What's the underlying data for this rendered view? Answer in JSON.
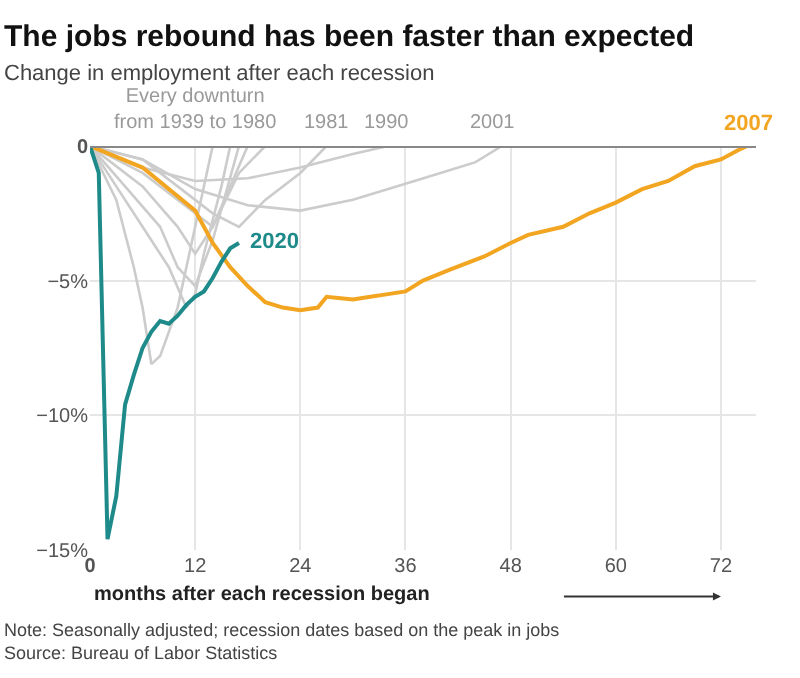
{
  "chart_data": {
    "type": "line",
    "title": "The jobs rebound has been faster than expected",
    "subtitle": "Change in employment after each recession",
    "xlabel": "months after each recession began",
    "xlim": [
      0,
      76
    ],
    "xticks": [
      {
        "value": 0,
        "label": "0"
      },
      12,
      24,
      36,
      48,
      60,
      72
    ],
    "ylim": [
      -15,
      0
    ],
    "yticks": [
      {
        "value": -15,
        "label": "−15%"
      },
      {
        "value": -10,
        "label": "−10%"
      },
      {
        "value": -5,
        "label": "−5%"
      },
      {
        "value": 0,
        "label": "0"
      }
    ],
    "grid": true,
    "legend": false,
    "marker": "none",
    "line_style": "solid",
    "ref_lines": [
      {
        "axis": "y",
        "value": 0,
        "color": "#888888"
      }
    ],
    "series": [
      {
        "color": "#cccccc",
        "x": [
          0,
          3,
          5,
          6,
          7,
          8,
          10,
          12,
          14
        ],
        "values": [
          0,
          -2,
          -4.5,
          -6,
          -8.1,
          -7.8,
          -6,
          -3,
          0
        ]
      },
      {
        "color": "#cccccc",
        "x": [
          0,
          3,
          6,
          9,
          11,
          12,
          13,
          15,
          16
        ],
        "values": [
          0,
          -1.5,
          -3,
          -4.5,
          -6,
          -5.5,
          -4,
          -1.5,
          0
        ]
      },
      {
        "color": "#cccccc",
        "x": [
          0,
          4,
          8,
          10,
          12,
          14,
          17
        ],
        "values": [
          0,
          -1.5,
          -3,
          -4.5,
          -5.2,
          -3.5,
          0
        ]
      },
      {
        "color": "#cccccc",
        "x": [
          0,
          6,
          10,
          12,
          14,
          18
        ],
        "values": [
          0,
          -1.5,
          -3,
          -4,
          -3,
          0
        ]
      },
      {
        "color": "#cccccc",
        "x": [
          0,
          6,
          12,
          14,
          17,
          20
        ],
        "values": [
          0,
          -1,
          -2.5,
          -3,
          -1,
          0
        ]
      },
      {
        "color": "#cccccc",
        "x": [
          0,
          6,
          10,
          14,
          17,
          20,
          24,
          27
        ],
        "values": [
          0,
          -0.5,
          -1.5,
          -2.5,
          -3,
          -2,
          -1,
          0
        ]
      },
      {
        "color": "#cccccc",
        "x": [
          0,
          6,
          12,
          18,
          24,
          30,
          34
        ],
        "values": [
          0,
          -0.8,
          -1.3,
          -1.2,
          -0.8,
          -0.3,
          0
        ]
      },
      {
        "color": "#cccccc",
        "x": [
          0,
          6,
          12,
          18,
          24,
          30,
          36,
          40,
          44,
          47
        ],
        "values": [
          0,
          -0.5,
          -1.6,
          -2.2,
          -2.4,
          -2,
          -1.4,
          -1,
          -0.6,
          0
        ]
      },
      {
        "name": "2007",
        "color": "#f2a521",
        "x": [
          0,
          6,
          12,
          14,
          16,
          18,
          20,
          22,
          24,
          26,
          27,
          30,
          32,
          34,
          36,
          38,
          41,
          45,
          48,
          50,
          54,
          57,
          60,
          63,
          66,
          69,
          72,
          74,
          75
        ],
        "values": [
          0,
          -0.8,
          -2.4,
          -3.6,
          -4.5,
          -5.2,
          -5.8,
          -6,
          -6.1,
          -6,
          -5.6,
          -5.7,
          -5.6,
          -5.5,
          -5.4,
          -5,
          -4.6,
          -4.1,
          -3.6,
          -3.3,
          -3,
          -2.5,
          -2.1,
          -1.6,
          -1.3,
          -0.75,
          -0.5,
          -0.15,
          0
        ]
      },
      {
        "name": "2020",
        "color": "#1f8a8a",
        "x": [
          0,
          1,
          2,
          3,
          4,
          5,
          6,
          7,
          8,
          9,
          10,
          11,
          12,
          13,
          14,
          15,
          16,
          17
        ],
        "values": [
          0,
          -1,
          -14.6,
          -13,
          -9.6,
          -8.5,
          -7.5,
          -6.9,
          -6.5,
          -6.6,
          -6.3,
          -5.9,
          -5.6,
          -5.4,
          -4.9,
          -4.3,
          -3.8,
          -3.6
        ]
      }
    ],
    "annotations": [
      {
        "text": "Every downturn\nfrom 1939 to 1980",
        "x": 12,
        "y": 0
      },
      {
        "text": "1981",
        "x": 27,
        "y": 0
      },
      {
        "text": "1990",
        "x": 34,
        "y": 0
      },
      {
        "text": "2001",
        "x": 46,
        "y": 0
      },
      "Note: Seasonally adjusted; recession dates based on the peak in jobs\nSource: Bureau of Labor Statistics"
    ]
  }
}
